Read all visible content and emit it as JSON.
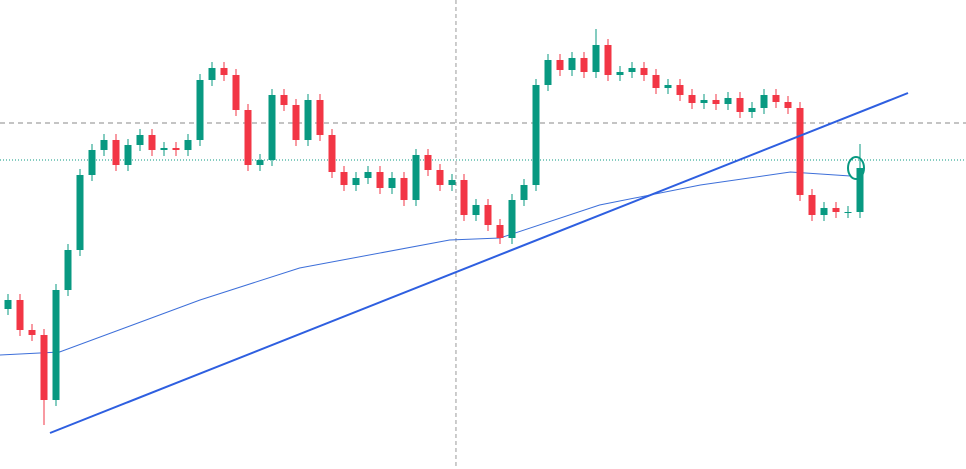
{
  "chart_data": {
    "type": "candlestick",
    "xlim": [
      -0.667,
      79.833
    ],
    "ylim": [
      0,
      469
    ],
    "up_color": "#089981",
    "down_color": "#f23645",
    "open": [
      160,
      169,
      139,
      134,
      69,
      179,
      219,
      294,
      319,
      329,
      304,
      324,
      334,
      319,
      321,
      319,
      329,
      389,
      401,
      394,
      359,
      304,
      309,
      374,
      364,
      329,
      369,
      334,
      297,
      284,
      291,
      297,
      281,
      291,
      269,
      314,
      299,
      284,
      289,
      254,
      264,
      244,
      231,
      269,
      284,
      384,
      409,
      399,
      411,
      397,
      424,
      394,
      397,
      401,
      394,
      381,
      384,
      374,
      366,
      369,
      365,
      371,
      357,
      361,
      374,
      367,
      361,
      274,
      254,
      261,
      257,
      257
    ],
    "high": [
      175,
      175,
      145,
      140,
      185,
      225,
      300,
      325,
      335,
      335,
      330,
      340,
      340,
      327,
      327,
      335,
      395,
      407,
      407,
      400,
      365,
      315,
      380,
      380,
      370,
      375,
      375,
      340,
      303,
      297,
      303,
      303,
      297,
      297,
      320,
      320,
      305,
      295,
      295,
      270,
      270,
      250,
      275,
      290,
      390,
      415,
      415,
      417,
      417,
      440,
      430,
      403,
      407,
      407,
      400,
      390,
      390,
      380,
      375,
      375,
      377,
      377,
      367,
      380,
      380,
      373,
      367,
      280,
      267,
      267,
      263,
      325
    ],
    "low": [
      154,
      133,
      128,
      44,
      63,
      173,
      213,
      288,
      313,
      298,
      298,
      318,
      313,
      313,
      313,
      313,
      323,
      383,
      388,
      353,
      298,
      298,
      303,
      358,
      323,
      323,
      328,
      291,
      278,
      278,
      285,
      275,
      275,
      263,
      263,
      293,
      278,
      278,
      248,
      248,
      238,
      225,
      225,
      263,
      278,
      378,
      393,
      393,
      391,
      391,
      388,
      388,
      391,
      388,
      375,
      375,
      368,
      360,
      360,
      359,
      359,
      351,
      351,
      355,
      361,
      355,
      268,
      248,
      248,
      251,
      251,
      251
    ],
    "close": [
      169,
      139,
      134,
      69,
      179,
      219,
      294,
      319,
      329,
      304,
      324,
      334,
      319,
      321,
      319,
      329,
      389,
      401,
      394,
      359,
      304,
      309,
      374,
      364,
      329,
      369,
      334,
      297,
      284,
      291,
      297,
      281,
      291,
      269,
      314,
      299,
      284,
      289,
      254,
      264,
      244,
      231,
      269,
      284,
      384,
      409,
      399,
      411,
      397,
      424,
      394,
      397,
      401,
      394,
      381,
      384,
      374,
      366,
      369,
      365,
      371,
      357,
      361,
      374,
      367,
      361,
      274,
      254,
      261,
      257,
      257,
      301
    ],
    "moving_average": {
      "color": "#3d6fd9",
      "x": [
        -0.7,
        4.3,
        16,
        24.3,
        36.8,
        41,
        49.3,
        57.7,
        65.2,
        70.2
      ],
      "values": [
        114,
        117,
        169,
        201,
        229,
        231,
        264,
        284,
        297,
        293
      ]
    },
    "trendline": {
      "color": "#2e5fe0",
      "x": [
        3.5,
        75
      ],
      "values": [
        36,
        376
      ]
    },
    "levels": [
      {
        "value": 346,
        "color": "#888888",
        "style": "dashed"
      },
      {
        "value": 309,
        "color": "#089981",
        "style": "dotted"
      }
    ],
    "crosshair_x": 37.33
  }
}
